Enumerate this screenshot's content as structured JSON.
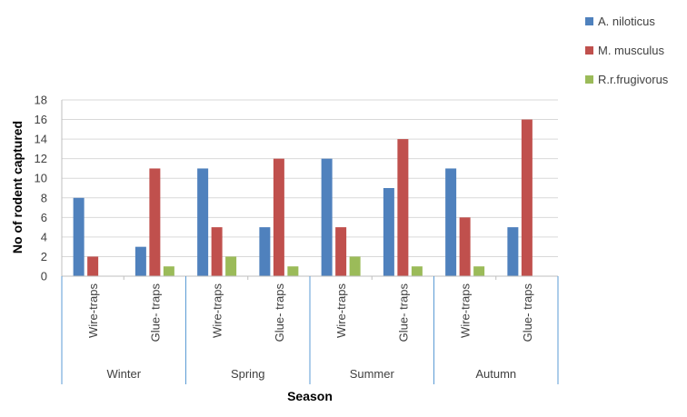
{
  "chart_data": {
    "type": "bar",
    "title": "",
    "xlabel": "Season",
    "ylabel": "No of rodent captured",
    "ylim": [
      0,
      18
    ],
    "yticks": [
      0,
      2,
      4,
      6,
      8,
      10,
      12,
      14,
      16,
      18
    ],
    "grid": true,
    "legend_position": "top-right",
    "groups": [
      "Winter",
      "Spring",
      "Summer",
      "Autumn"
    ],
    "categories": [
      "Wire-traps",
      "Glue- traps",
      "Wire-traps",
      "Glue- traps",
      "Wire-traps",
      "Glue- traps",
      "Wire-traps",
      "Glue- traps"
    ],
    "series": [
      {
        "name": "A. niloticus",
        "color": "#4f81bd",
        "values": [
          8,
          3,
          11,
          5,
          12,
          9,
          11,
          5
        ]
      },
      {
        "name": "M. musculus",
        "color": "#c0504d",
        "values": [
          2,
          11,
          5,
          12,
          5,
          14,
          6,
          16
        ]
      },
      {
        "name": "R.r.frugivorus",
        "color": "#9bbb59",
        "values": [
          0,
          1,
          2,
          1,
          2,
          1,
          1,
          0
        ]
      }
    ]
  }
}
